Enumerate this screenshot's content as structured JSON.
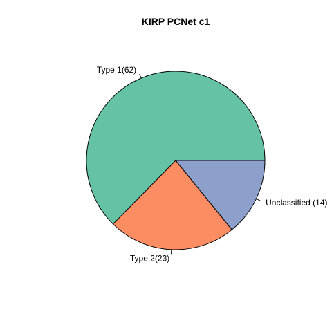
{
  "chart_data": {
    "type": "pie",
    "title": "KIRP PCNet c1",
    "categories": [
      "Type 1",
      "Type 2",
      "Unclassified"
    ],
    "values": [
      62,
      23,
      14
    ],
    "labels": [
      "Type 1(62)",
      "Type 2(23)",
      "Unclassified (14)"
    ],
    "colors": [
      "#66C2A5",
      "#FC8D62",
      "#8DA0CB"
    ],
    "start_angle_deg": 0,
    "direction": "counterclockwise",
    "legend": "none"
  }
}
